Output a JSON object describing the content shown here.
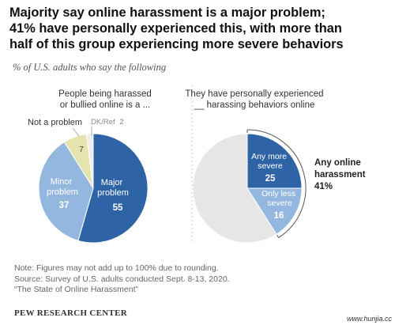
{
  "title_lines": [
    "Majority say online harassment is a major problem;",
    "41% have personally experienced this, with more than",
    "half of this group experiencing more severe behaviors"
  ],
  "subtitle": "% of U.S. adults who say the following",
  "colors": {
    "major": "#2E64A6",
    "minor": "#94B7E0",
    "not_a_problem": "#E6E4AE",
    "dk_ref": "#EDEDED",
    "no_experience": "#E6E6E6",
    "severe": "#2E64A6",
    "less_severe": "#94B7E0"
  },
  "chart_data": [
    {
      "type": "pie",
      "title": "People being harassed or bullied online is a ...",
      "title_lines": [
        "People being harassed",
        "or bullied online is a ..."
      ],
      "slices": [
        {
          "label": "Major problem",
          "label_lines": [
            "Major",
            "problem"
          ],
          "value": 55,
          "value_label": "55"
        },
        {
          "label": "Minor problem",
          "label_lines": [
            "Minor",
            "problem"
          ],
          "value": 37,
          "value_label": "37"
        },
        {
          "label": "Not a problem",
          "label_lines": [
            "Not a problem"
          ],
          "value": 7,
          "value_label": "7"
        },
        {
          "label": "DK/Ref",
          "label_lines": [
            "DK/Ref"
          ],
          "value": 2,
          "value_label": "2"
        }
      ]
    },
    {
      "type": "pie",
      "title": "They have personally experienced __ harassing behaviors online",
      "title_lines": [
        "They have personally experienced",
        "__ harassing behaviors online"
      ],
      "slices": [
        {
          "label": "Any more severe",
          "label_lines": [
            "Any more",
            "severe"
          ],
          "value": 25,
          "value_label": "25"
        },
        {
          "label": "Only less severe",
          "label_lines": [
            "Only less",
            "severe"
          ],
          "value": 16,
          "value_label": "16"
        },
        {
          "label": "",
          "value": 59
        }
      ],
      "annotation": {
        "lines": [
          "Any online",
          "harassment",
          "41%"
        ],
        "value": 41
      }
    }
  ],
  "notes": [
    "Note: Figures may not add up to 100% due to rounding.",
    "Source: Survey of U.S. adults conducted Sept. 8-13, 2020.",
    "“The State of Online Harassment”"
  ],
  "brand": "PEW RESEARCH CENTER",
  "watermark": "www.hunjia.cc"
}
